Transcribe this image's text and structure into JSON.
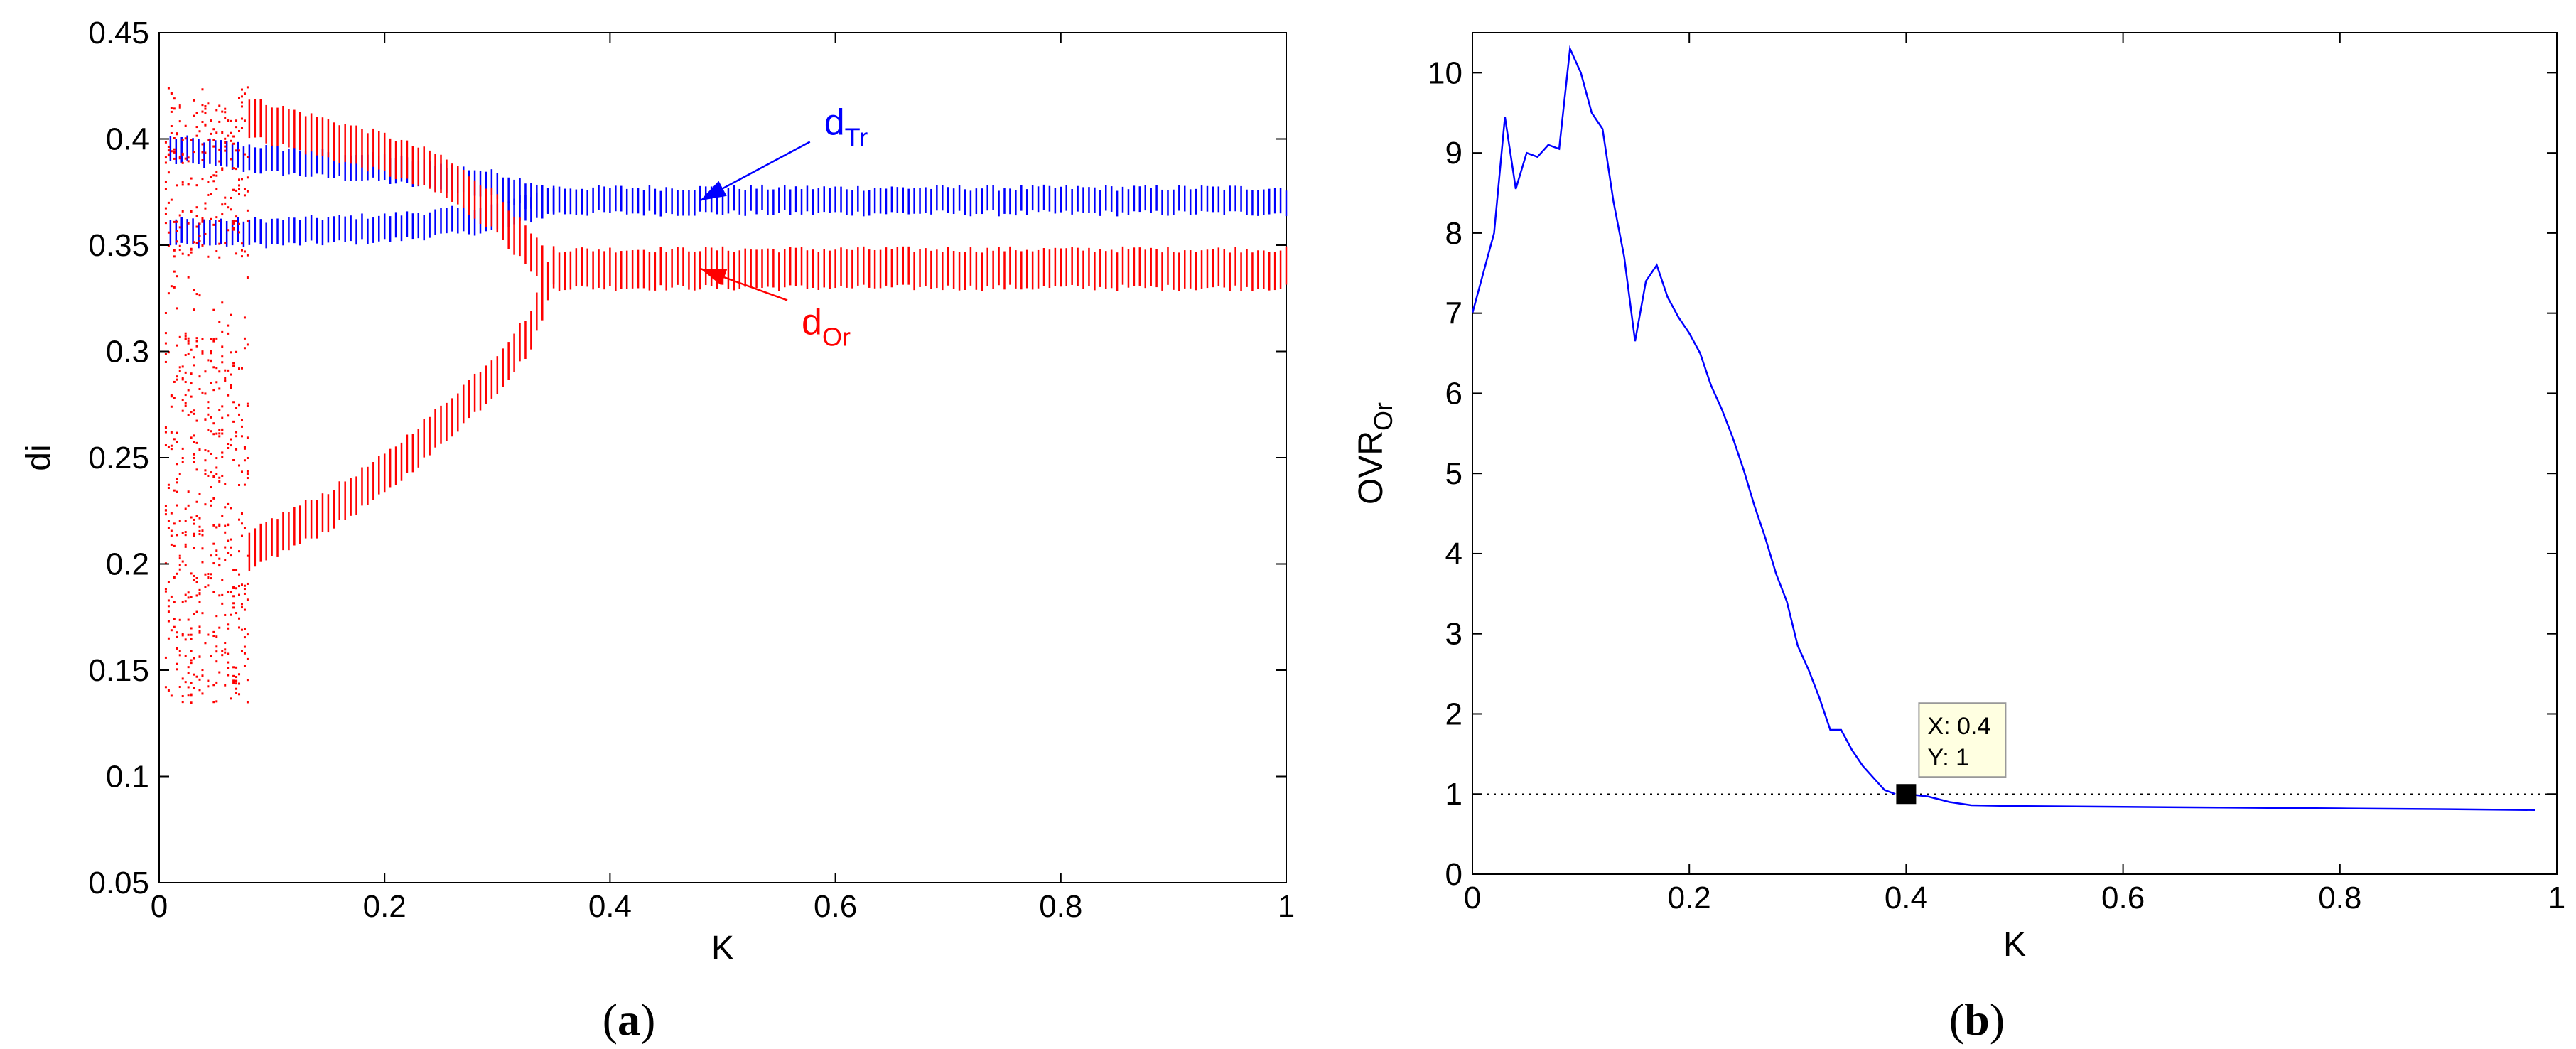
{
  "chart_data": [
    {
      "type": "scatter",
      "panel_label": "(a)",
      "panel_letter": "a",
      "xlabel": "K",
      "ylabel": "di",
      "xlim": [
        0,
        1
      ],
      "ylim": [
        0.05,
        0.45
      ],
      "xticks": [
        0,
        0.2,
        0.4,
        0.6,
        0.8,
        1
      ],
      "xtick_labels": [
        "0",
        "0.2",
        "0.4",
        "0.6",
        "0.8",
        "1"
      ],
      "yticks": [
        0.05,
        0.1,
        0.15,
        0.2,
        0.25,
        0.3,
        0.35,
        0.4,
        0.45
      ],
      "ytick_labels": [
        "0.05",
        "0.1",
        "0.15",
        "0.2",
        "0.25",
        "0.3",
        "0.35",
        "0.4",
        "0.45"
      ],
      "grid": false,
      "series": [
        {
          "name": "d_Tr",
          "label_main": "d",
          "label_sub": "Tr",
          "color": "#0000ff",
          "upper_branch": {
            "x": [
              0.01,
              0.1,
              0.2,
              0.3,
              0.35
            ],
            "y": [
              0.395,
              0.39,
              0.386,
              0.378,
              0.371
            ]
          },
          "lower_branch": {
            "x": [
              0.01,
              0.1,
              0.2,
              0.3,
              0.35
            ],
            "y": [
              0.356,
              0.356,
              0.358,
              0.363,
              0.371
            ]
          },
          "steady": {
            "x": [
              0.35,
              1.0
            ],
            "y": [
              0.371,
              0.371
            ]
          },
          "band_width": 0.006
        },
        {
          "name": "d_Or",
          "label_main": "d",
          "label_sub": "Or",
          "color": "#ff0000",
          "upper_branch": {
            "x": [
              0.08,
              0.15,
              0.2,
              0.25,
              0.3,
              0.34
            ],
            "y": [
              0.41,
              0.4,
              0.393,
              0.383,
              0.365,
              0.34
            ]
          },
          "lower_branch": {
            "x": [
              0.08,
              0.1,
              0.15,
              0.2,
              0.25,
              0.3,
              0.33,
              0.35
            ],
            "y": [
              0.205,
              0.212,
              0.225,
              0.242,
              0.265,
              0.29,
              0.31,
              0.34
            ]
          },
          "steady": {
            "x": [
              0.35,
              1.0
            ],
            "y": [
              0.339,
              0.339
            ]
          },
          "band_width": 0.009,
          "chaotic_region": {
            "x": [
              0.005,
              0.08
            ],
            "y": [
              0.135,
              0.425
            ]
          }
        }
      ],
      "annotations": [
        {
          "series": "d_Tr",
          "target": {
            "x": 0.48,
            "y": 0.371
          },
          "label_at": {
            "x": 0.59,
            "y": 0.402
          }
        },
        {
          "series": "d_Or",
          "target": {
            "x": 0.48,
            "y": 0.339
          },
          "label_at": {
            "x": 0.57,
            "y": 0.308
          }
        }
      ]
    },
    {
      "type": "line",
      "panel_label": "(b)",
      "panel_letter": "b",
      "xlabel": "K",
      "ylabel": "OVR",
      "ylabel_sub": "Or",
      "xlim": [
        0,
        1
      ],
      "ylim": [
        0,
        10.5
      ],
      "xticks": [
        0,
        0.2,
        0.4,
        0.6,
        0.8,
        1
      ],
      "xtick_labels": [
        "0",
        "0.2",
        "0.4",
        "0.6",
        "0.8",
        "1"
      ],
      "yticks": [
        0,
        1,
        2,
        3,
        4,
        5,
        6,
        7,
        8,
        9,
        10
      ],
      "ytick_labels": [
        "0",
        "1",
        "2",
        "3",
        "4",
        "5",
        "6",
        "7",
        "8",
        "9",
        "10"
      ],
      "grid": false,
      "color": "#0000ff",
      "x": [
        0.0,
        0.01,
        0.02,
        0.03,
        0.04,
        0.05,
        0.06,
        0.07,
        0.08,
        0.09,
        0.1,
        0.11,
        0.12,
        0.13,
        0.14,
        0.15,
        0.16,
        0.17,
        0.18,
        0.19,
        0.2,
        0.21,
        0.22,
        0.23,
        0.24,
        0.25,
        0.26,
        0.27,
        0.28,
        0.29,
        0.3,
        0.31,
        0.32,
        0.33,
        0.34,
        0.35,
        0.36,
        0.37,
        0.38,
        0.39
      ],
      "y": [
        7.0,
        7.5,
        8.0,
        9.45,
        8.55,
        9.0,
        8.95,
        9.1,
        9.05,
        10.3,
        10.0,
        9.5,
        9.3,
        8.4,
        7.7,
        6.65,
        7.4,
        7.6,
        7.2,
        6.95,
        6.75,
        6.5,
        6.1,
        5.8,
        5.45,
        5.05,
        4.6,
        4.2,
        3.75,
        3.4,
        2.85,
        2.55,
        2.2,
        1.8,
        1.8,
        1.55,
        1.35,
        1.2,
        1.05,
        1.0
      ],
      "tail": {
        "x": [
          0.4,
          0.42,
          0.44,
          0.46,
          0.5,
          0.6,
          0.7,
          0.8,
          0.9,
          0.98
        ],
        "y": [
          1.0,
          0.97,
          0.9,
          0.86,
          0.85,
          0.84,
          0.83,
          0.82,
          0.81,
          0.8
        ]
      },
      "reference_line": {
        "y": 1,
        "style": "dotted"
      },
      "datatip": {
        "x": 0.4,
        "y": 1,
        "x_text": "X: 0.4",
        "y_text": "Y: 1"
      }
    }
  ]
}
